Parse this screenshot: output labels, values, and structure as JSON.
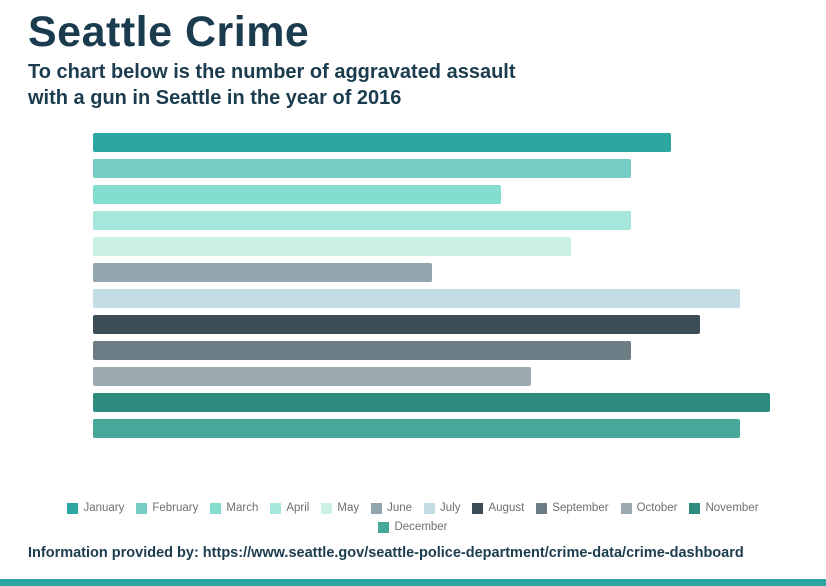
{
  "header": {
    "title": "Seattle Crime",
    "subtitle_line1": "To chart below is the number of aggravated assault",
    "subtitle_line2": "with a gun in Seattle in the year of 2016"
  },
  "footer": {
    "text": "Information provided by: https://www.seattle.gov/seattle-police-department/crime-data/crime-dashboard"
  },
  "theme": {
    "title_color": "#1b3c4e",
    "legend_text_color": "#6e6f72",
    "accent_bar_color": "#2ba6a0"
  },
  "chart_data": {
    "type": "bar",
    "orientation": "horizontal",
    "title": "Seattle Crime",
    "subtitle": "To chart below is the number of aggravated assault with a gun in Seattle in the year of 2016",
    "categories": [
      "January",
      "February",
      "March",
      "April",
      "May",
      "June",
      "July",
      "August",
      "September",
      "October",
      "November",
      "December"
    ],
    "values": [
      58,
      54,
      41,
      54,
      48,
      34,
      65,
      61,
      54,
      44,
      68,
      65
    ],
    "colors": [
      "#2ba6a0",
      "#77ccc5",
      "#84ded0",
      "#a6e7dc",
      "#cbf1e7",
      "#92a4ad",
      "#c4dde4",
      "#3d4d57",
      "#6d7d86",
      "#9caab2",
      "#2e8c7f",
      "#47a89a"
    ],
    "xlim": [
      0,
      72
    ],
    "xlabel": "",
    "ylabel": "",
    "grid": false,
    "legend_position": "bottom",
    "legend_rows": [
      11,
      1
    ]
  }
}
